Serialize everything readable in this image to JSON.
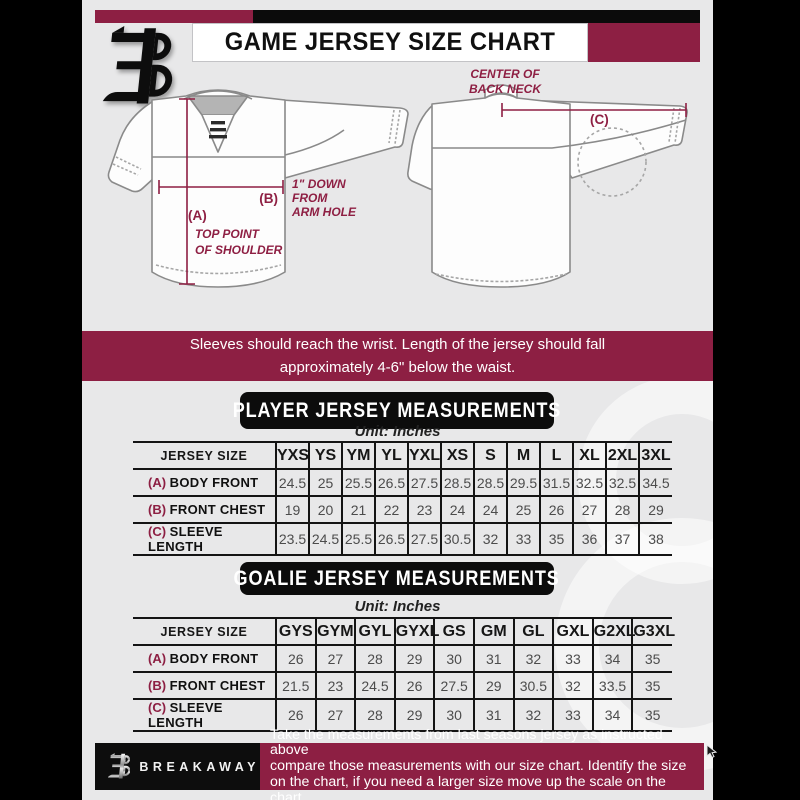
{
  "colors": {
    "maroon": "#8d1f43",
    "black": "#0c0c0c",
    "content_bg": "#e8e8e9"
  },
  "header": {
    "title": "GAME JERSEY SIZE CHART",
    "logo": "breakaway-b-logo"
  },
  "diagram": {
    "front": {
      "a_label": "(A)",
      "a_caption": [
        "TOP POINT",
        "OF SHOULDER"
      ],
      "b_label": "(B)",
      "b_caption": [
        "1\" DOWN",
        "FROM",
        "ARM HOLE"
      ]
    },
    "back": {
      "c_label": "(C)",
      "c_caption": [
        "CENTER OF",
        "BACK NECK"
      ]
    }
  },
  "notice": {
    "lines": [
      "Sleeves should reach the wrist. Length of the jersey should fall",
      "approximately 4-6\" below the waist."
    ]
  },
  "player_section": {
    "title": "PLAYER JERSEY MEASUREMENTS",
    "unit": "Unit: Inches",
    "table": {
      "size_header": "JERSEY SIZE",
      "sizes": [
        "YXS",
        "YS",
        "YM",
        "YL",
        "YXL",
        "XS",
        "S",
        "M",
        "L",
        "XL",
        "2XL",
        "3XL"
      ],
      "rows": [
        {
          "key": "(A)",
          "label": "BODY FRONT",
          "values": [
            "24.5",
            "25",
            "25.5",
            "26.5",
            "27.5",
            "28.5",
            "28.5",
            "29.5",
            "31.5",
            "32.5",
            "32.5",
            "34.5"
          ]
        },
        {
          "key": "(B)",
          "label": "FRONT CHEST",
          "values": [
            "19",
            "20",
            "21",
            "22",
            "23",
            "24",
            "24",
            "25",
            "26",
            "27",
            "28",
            "29"
          ]
        },
        {
          "key": "(C)",
          "label": "SLEEVE LENGTH",
          "values": [
            "23.5",
            "24.5",
            "25.5",
            "26.5",
            "27.5",
            "30.5",
            "32",
            "33",
            "35",
            "36",
            "37",
            "38"
          ]
        }
      ]
    }
  },
  "goalie_section": {
    "title": "GOALIE JERSEY MEASUREMENTS",
    "unit": "Unit: Inches",
    "table": {
      "size_header": "JERSEY SIZE",
      "sizes": [
        "GYS",
        "GYM",
        "GYL",
        "GYXL",
        "GS",
        "GM",
        "GL",
        "GXL",
        "G2XL",
        "G3XL"
      ],
      "rows": [
        {
          "key": "(A)",
          "label": "BODY FRONT",
          "values": [
            "26",
            "27",
            "28",
            "29",
            "30",
            "31",
            "32",
            "33",
            "34",
            "35"
          ]
        },
        {
          "key": "(B)",
          "label": "FRONT CHEST",
          "values": [
            "21.5",
            "23",
            "24.5",
            "26",
            "27.5",
            "29",
            "30.5",
            "32",
            "33.5",
            "35"
          ]
        },
        {
          "key": "(C)",
          "label": "SLEEVE LENGTH",
          "values": [
            "26",
            "27",
            "28",
            "29",
            "30",
            "31",
            "32",
            "33",
            "34",
            "35"
          ]
        }
      ]
    }
  },
  "footer": {
    "brand": "BREAKAWAY",
    "lines": [
      "Take the measurements from last seasons jersey as instructed above",
      "compare those measurements  with our size chart. Identify the size",
      "on the chart, if you need a larger size move up the scale on the chart"
    ]
  }
}
